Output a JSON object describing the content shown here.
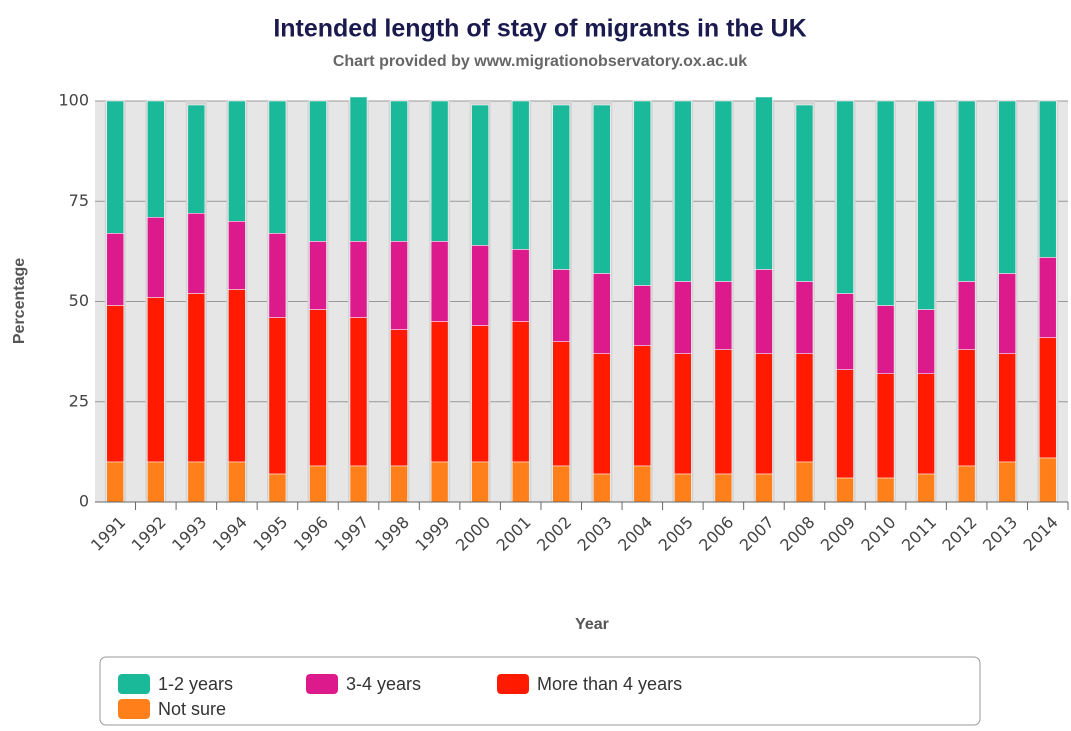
{
  "chart_data": {
    "type": "stacked_bar",
    "title": "Intended length of stay of migrants in the UK",
    "subtitle": "Chart provided by www.migrationobservatory.ox.ac.uk",
    "x_label": "Year",
    "y_label": "Percentage",
    "categories": [
      "1991",
      "1992",
      "1993",
      "1994",
      "1995",
      "1996",
      "1997",
      "1998",
      "1999",
      "2000",
      "2001",
      "2002",
      "2003",
      "2004",
      "2005",
      "2006",
      "2007",
      "2008",
      "2009",
      "2010",
      "2011",
      "2012",
      "2013",
      "2014"
    ],
    "series": [
      {
        "name": "Not sure",
        "color": "#ff7f1a",
        "values": [
          10,
          10,
          10,
          10,
          7,
          9,
          9,
          9,
          10,
          10,
          10,
          9,
          7,
          9,
          7,
          7,
          7,
          10,
          6,
          6,
          7,
          9,
          10,
          11
        ]
      },
      {
        "name": "More than 4 years",
        "color": "#ff1a00",
        "values": [
          39,
          41,
          42,
          43,
          39,
          39,
          37,
          34,
          35,
          34,
          35,
          31,
          30,
          30,
          30,
          31,
          30,
          27,
          27,
          26,
          25,
          29,
          27,
          30
        ]
      },
      {
        "name": "3-4 years",
        "color": "#dc1a8c",
        "values": [
          18,
          20,
          20,
          17,
          21,
          17,
          19,
          22,
          20,
          20,
          18,
          18,
          20,
          15,
          18,
          17,
          21,
          18,
          19,
          17,
          16,
          17,
          20,
          20
        ]
      },
      {
        "name": "1-2 years",
        "color": "#1ab99a",
        "values": [
          33,
          29,
          27,
          30,
          33,
          35,
          36,
          35,
          35,
          35,
          37,
          41,
          42,
          46,
          45,
          45,
          43,
          44,
          48,
          51,
          52,
          45,
          43,
          39
        ]
      }
    ],
    "legend_order": [
      3,
      2,
      1,
      0
    ],
    "ylim": [
      0,
      100
    ],
    "yticks": [
      0,
      25,
      50,
      75,
      100
    ],
    "grid": true,
    "legend": "bottom"
  }
}
